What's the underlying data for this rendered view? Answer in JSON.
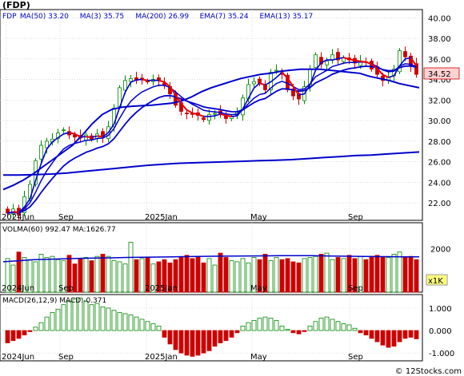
{
  "chart_data": [
    {
      "panel": "price",
      "type": "candlestick",
      "title": "(FDP)",
      "legend": [
        {
          "label": "FDP",
          "value": "",
          "color": "#000000"
        },
        {
          "label": "MA(50)",
          "value": "33.20",
          "color": "#0000cc"
        },
        {
          "label": "MA(3)",
          "value": "35.75",
          "color": "#0000cc"
        },
        {
          "label": "MA(200)",
          "value": "26.99",
          "color": "#0000cc"
        },
        {
          "label": "EMA(7)",
          "value": "35.24",
          "color": "#0000cc"
        },
        {
          "label": "EMA(13)",
          "value": "35.17",
          "color": "#0000cc"
        }
      ],
      "ylim": [
        20.3,
        40.8
      ],
      "y_ticks": [
        "40.00",
        "38.00",
        "36.00",
        "34.00",
        "32.00",
        "30.00",
        "28.00",
        "26.00",
        "24.00",
        "22.00"
      ],
      "x_ticks": [
        "2024Jun",
        "Sep",
        "2025Jan",
        "May",
        "Sep"
      ],
      "last_price": "34.52",
      "close": [
        21.0,
        21.4,
        20.8,
        22.6,
        23.8,
        26.1,
        27.6,
        28.0,
        28.2,
        28.8,
        29.1,
        28.6,
        28.4,
        28.3,
        28.6,
        28.2,
        28.7,
        28.4,
        29.4,
        31.2,
        33.2,
        33.9,
        34.1,
        33.9,
        34.0,
        33.8,
        34.0,
        33.9,
        33.4,
        32.6,
        31.5,
        30.9,
        30.7,
        30.6,
        30.5,
        30.1,
        30.6,
        30.7,
        30.6,
        30.2,
        30.4,
        30.8,
        32.2,
        33.5,
        33.8,
        33.6,
        33.0,
        34.7,
        34.9,
        34.5,
        33.0,
        32.4,
        32.1,
        33.3,
        35.0,
        36.4,
        35.5,
        35.8,
        36.4,
        35.9,
        36.1,
        35.9,
        35.6,
        35.8,
        35.7,
        35.0,
        34.5,
        33.9,
        34.2,
        35.0,
        36.8,
        36.2,
        35.3,
        34.5
      ],
      "ma_200": [
        24.7,
        24.7,
        24.75,
        24.8,
        24.9,
        25.05,
        25.2,
        25.35,
        25.5,
        25.65,
        25.75,
        25.85,
        25.9,
        25.95,
        26.0,
        26.05,
        26.1,
        26.15,
        26.2,
        26.3,
        26.4,
        26.5,
        26.6,
        26.65,
        26.75,
        26.85,
        26.95
      ],
      "ma_50": [
        23.3,
        23.7,
        24.2,
        24.8,
        25.5,
        26.2,
        26.9,
        27.6,
        28.6,
        29.7,
        30.6,
        31.1,
        31.3,
        31.4,
        31.45,
        31.5,
        31.6,
        31.7,
        31.9,
        32.3,
        32.8,
        33.2,
        33.5,
        33.8,
        34.1,
        34.3,
        34.5,
        34.6,
        34.8,
        34.9,
        35.0,
        35.0,
        35.0,
        34.9,
        34.8,
        34.7,
        34.6,
        34.3,
        34.1,
        33.9,
        33.6,
        33.4,
        33.2
      ]
    },
    {
      "panel": "volume",
      "type": "bar",
      "legend": [
        {
          "label": "VOLMA(60)",
          "value": "992.47"
        },
        {
          "label": "MA:",
          "value": "1626.77"
        }
      ],
      "ylim": [
        0,
        3200
      ],
      "y_ticks": [
        "2000"
      ],
      "unit": "x1K",
      "x_ticks": [
        "2024Jun",
        "Sep",
        "2025Jan",
        "May",
        "Sep"
      ],
      "volume": [
        1550,
        1250,
        1850,
        1600,
        1500,
        1400,
        1750,
        1600,
        1650,
        1500,
        1450,
        1700,
        1300,
        1550,
        1600,
        1450,
        1650,
        1750,
        1650,
        1450,
        1400,
        1300,
        2300,
        1500,
        1550,
        1600,
        1300,
        1400,
        1500,
        1350,
        1500,
        1600,
        1700,
        1550,
        1650,
        1350,
        1550,
        1250,
        1800,
        1600,
        1450,
        1400,
        1550,
        1350,
        1600,
        1500,
        1750,
        1450,
        1600,
        1500,
        1550,
        1400,
        1350,
        1550,
        1600,
        1650,
        1750,
        1800,
        1500,
        1600,
        1550,
        1700,
        1550,
        1650,
        1500,
        1650,
        1700,
        1600,
        1600,
        1750,
        1850,
        1600,
        1650,
        1500
      ],
      "volma": [
        1400,
        1450,
        1500,
        1520,
        1540,
        1560,
        1570,
        1580,
        1600,
        1610,
        1620,
        1630,
        1640,
        1650,
        1660,
        1665,
        1670,
        1675,
        1680,
        1685,
        1680,
        1670,
        1660,
        1650,
        1640,
        1635,
        1630,
        1627
      ]
    },
    {
      "panel": "macd",
      "type": "bar",
      "legend": [
        {
          "label": "MACD(26,12,9)",
          "value": ""
        },
        {
          "label": "MACD:",
          "value": "-0.371"
        }
      ],
      "ylim": [
        -1.35,
        1.6
      ],
      "y_ticks": [
        "1.000",
        "0.000",
        "-1.000"
      ],
      "x_ticks": [
        "2024Jun",
        "Sep",
        "2025Jan",
        "May",
        "Sep"
      ],
      "histogram": [
        -0.55,
        -0.45,
        -0.35,
        -0.2,
        -0.05,
        0.15,
        0.35,
        0.6,
        0.8,
        0.95,
        1.15,
        1.3,
        1.4,
        1.45,
        1.3,
        1.15,
        1.2,
        1.05,
        1.0,
        0.9,
        0.8,
        0.75,
        0.7,
        0.6,
        0.5,
        0.4,
        0.3,
        0.2,
        -0.3,
        -0.6,
        -0.85,
        -1.0,
        -1.1,
        -1.15,
        -1.1,
        -1.0,
        -0.9,
        -0.7,
        -0.55,
        -0.45,
        -0.3,
        -0.1,
        0.2,
        0.35,
        0.45,
        0.55,
        0.6,
        0.55,
        0.45,
        0.2,
        0.05,
        -0.1,
        -0.15,
        -0.05,
        0.2,
        0.4,
        0.55,
        0.6,
        0.5,
        0.4,
        0.3,
        0.25,
        0.1,
        -0.1,
        -0.2,
        -0.35,
        -0.5,
        -0.65,
        -0.75,
        -0.7,
        -0.5,
        -0.35,
        -0.3,
        -0.37
      ]
    }
  ],
  "footer": {
    "watermark": "© 12Stocks.com"
  }
}
